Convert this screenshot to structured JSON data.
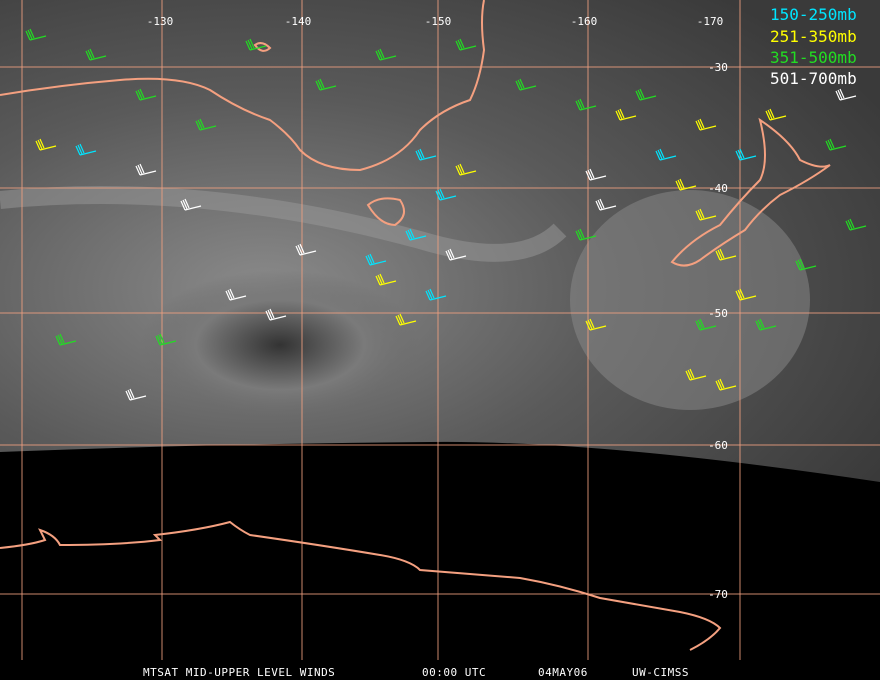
{
  "grid": {
    "longitudes": [
      "-130",
      "-140",
      "-150",
      "-160",
      "-170"
    ],
    "latitudes": [
      "-30",
      "-40",
      "-50",
      "-60",
      "-70"
    ]
  },
  "legend": [
    {
      "name": "150-250mb",
      "color": "#00e5ff"
    },
    {
      "name": "251-350mb",
      "color": "#ffff00"
    },
    {
      "name": "351-500mb",
      "color": "#22dd22"
    },
    {
      "name": "501-700mb",
      "color": "#ffffff"
    }
  ],
  "footer": [
    "MTSAT MID-UPPER LEVEL WINDS",
    "00:00 UTC",
    "04MAY06",
    "UW-CIMSS"
  ]
}
